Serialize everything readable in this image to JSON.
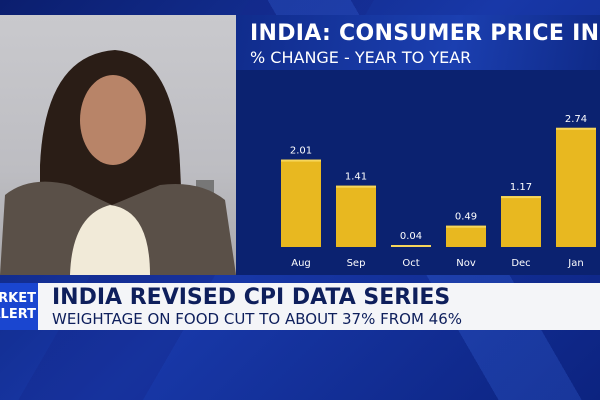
{
  "chart_data": {
    "type": "bar",
    "title": "INDIA: CONSUMER PRICE INDEX",
    "subtitle": "% CHANGE - YEAR TO YEAR",
    "categories": [
      "Aug",
      "Sep",
      "Oct",
      "Nov",
      "Dec",
      "Jan"
    ],
    "values": [
      2.01,
      1.41,
      0.04,
      0.49,
      1.17,
      2.74
    ],
    "value_labels": [
      "2.01",
      "1.41",
      "0.04",
      "0.49",
      "1.17",
      "2.74"
    ],
    "bar_color": "#e8b820",
    "grid": false
  },
  "lower_third": {
    "tag_line1": "MARKET",
    "tag_line2": "ALERT",
    "headline": "INDIA REVISED CPI DATA SERIES",
    "subheadline": "WEIGHTAGE ON FOOD CUT TO ABOUT 37% FROM 46%"
  },
  "colors": {
    "tag": "#1a46d0",
    "headline_text": "#0e1f5c",
    "chart_bg": "#0b2270"
  }
}
